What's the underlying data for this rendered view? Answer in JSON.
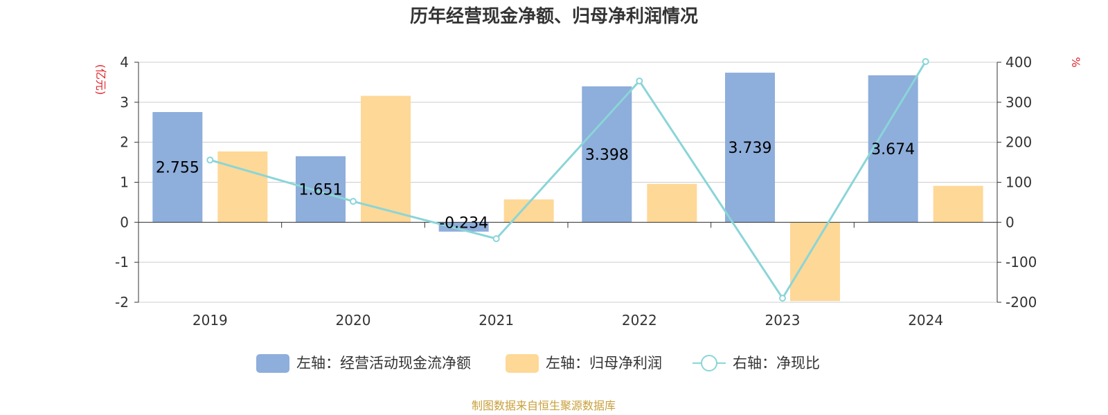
{
  "chart_data": {
    "type": "bar",
    "title": "历年经营现金净额、归母净利润情况",
    "categories": [
      "2019",
      "2020",
      "2021",
      "2022",
      "2023",
      "2024"
    ],
    "left_axis": {
      "unit": "(亿元)",
      "ylim": [
        -2,
        4
      ],
      "ticks": [
        "-2",
        "-1",
        "0",
        "1",
        "2",
        "3",
        "4"
      ]
    },
    "right_axis": {
      "unit": "%",
      "ylim": [
        -200,
        400
      ],
      "ticks": [
        "-200",
        "-100",
        "0",
        "100",
        "200",
        "300",
        "400"
      ]
    },
    "series": [
      {
        "name": "左轴：经营活动现金流净额",
        "type": "bar",
        "axis": "left",
        "color": "#8eaedb",
        "values": [
          2.755,
          1.651,
          -0.234,
          3.398,
          3.739,
          3.674
        ],
        "labels": [
          "2.755",
          "1.651",
          "-0.234",
          "3.398",
          "3.739",
          "3.674"
        ]
      },
      {
        "name": "左轴：归母净利润",
        "type": "bar",
        "axis": "left",
        "color": "#fed897",
        "values": [
          1.77,
          3.16,
          0.57,
          0.96,
          -1.97,
          0.91
        ]
      },
      {
        "name": "右轴：净现比",
        "type": "line",
        "axis": "right",
        "color": "#8ad5d8",
        "values": [
          155.6,
          52.2,
          -41.1,
          353.2,
          -189.8,
          401.8
        ]
      }
    ],
    "grid": true,
    "legend_position": "bottom"
  },
  "source_text": "制图数据来自恒生聚源数据库"
}
